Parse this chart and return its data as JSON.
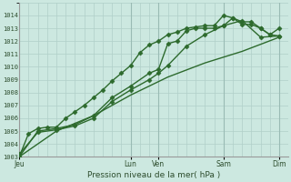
{
  "background_color": "#cce8e0",
  "grid_color": "#b0cfc8",
  "line_color": "#2d6a2d",
  "xlabel": "Pression niveau de la mer( hPa )",
  "ylim": [
    1003,
    1015
  ],
  "yticks": [
    1003,
    1004,
    1005,
    1006,
    1007,
    1008,
    1009,
    1010,
    1011,
    1012,
    1013,
    1014
  ],
  "x_day_labels": [
    "Jeu",
    "Lun",
    "Ven",
    "Sam",
    "Dim"
  ],
  "x_day_positions": [
    0,
    3.0,
    3.75,
    5.5,
    7.0
  ],
  "x_vlines": [
    0,
    3.0,
    3.75,
    5.5,
    7.0
  ],
  "xmin": 0,
  "xmax": 7.25,
  "series": [
    {
      "x": [
        0,
        0.25,
        0.5,
        0.75,
        1.0,
        1.25,
        1.5,
        1.75,
        2.0,
        2.25,
        2.5,
        2.75,
        3.0,
        3.25,
        3.5,
        3.75,
        4.0,
        4.25,
        4.5,
        4.75,
        5.0,
        5.25,
        5.5,
        5.75,
        6.0,
        6.25,
        6.5,
        6.75,
        7.0
      ],
      "y": [
        1003.0,
        1004.8,
        1005.2,
        1005.3,
        1005.3,
        1006.0,
        1006.5,
        1007.0,
        1007.6,
        1008.2,
        1008.9,
        1009.5,
        1010.1,
        1011.1,
        1011.7,
        1012.0,
        1012.5,
        1012.7,
        1013.0,
        1013.1,
        1013.2,
        1013.2,
        1014.0,
        1013.8,
        1013.3,
        1013.3,
        1013.0,
        1012.5,
        1013.0
      ],
      "marker": "D",
      "markersize": 2.5,
      "linewidth": 1.0
    },
    {
      "x": [
        0,
        0.5,
        1.0,
        1.5,
        2.0,
        2.5,
        3.0,
        3.5,
        3.75,
        4.0,
        4.25,
        4.5,
        4.75,
        5.0,
        5.25,
        5.5,
        5.75,
        6.0,
        6.25,
        6.5,
        6.75,
        7.0
      ],
      "y": [
        1003.0,
        1005.0,
        1005.2,
        1005.5,
        1006.2,
        1007.6,
        1008.5,
        1009.5,
        1009.8,
        1011.8,
        1012.0,
        1012.8,
        1013.0,
        1013.0,
        1013.0,
        1013.2,
        1013.8,
        1013.5,
        1013.5,
        1013.0,
        1012.5,
        1012.4
      ],
      "marker": "D",
      "markersize": 2.5,
      "linewidth": 1.0
    },
    {
      "x": [
        0,
        0.5,
        1.0,
        1.5,
        2.0,
        2.5,
        3.0,
        3.5,
        3.75,
        4.0,
        4.5,
        5.0,
        5.5,
        6.0,
        6.5,
        7.0
      ],
      "y": [
        1003.2,
        1004.9,
        1005.1,
        1005.4,
        1006.0,
        1007.3,
        1008.2,
        1009.0,
        1009.5,
        1010.1,
        1011.6,
        1012.5,
        1013.2,
        1013.6,
        1012.3,
        1012.4
      ],
      "marker": "D",
      "markersize": 2.5,
      "linewidth": 1.0
    },
    {
      "x": [
        0,
        1.0,
        2.0,
        3.0,
        4.0,
        5.0,
        6.0,
        7.0
      ],
      "y": [
        1003.0,
        1005.0,
        1006.2,
        1007.8,
        1009.2,
        1010.3,
        1011.2,
        1012.3
      ],
      "marker": null,
      "markersize": 0,
      "linewidth": 1.0
    }
  ]
}
